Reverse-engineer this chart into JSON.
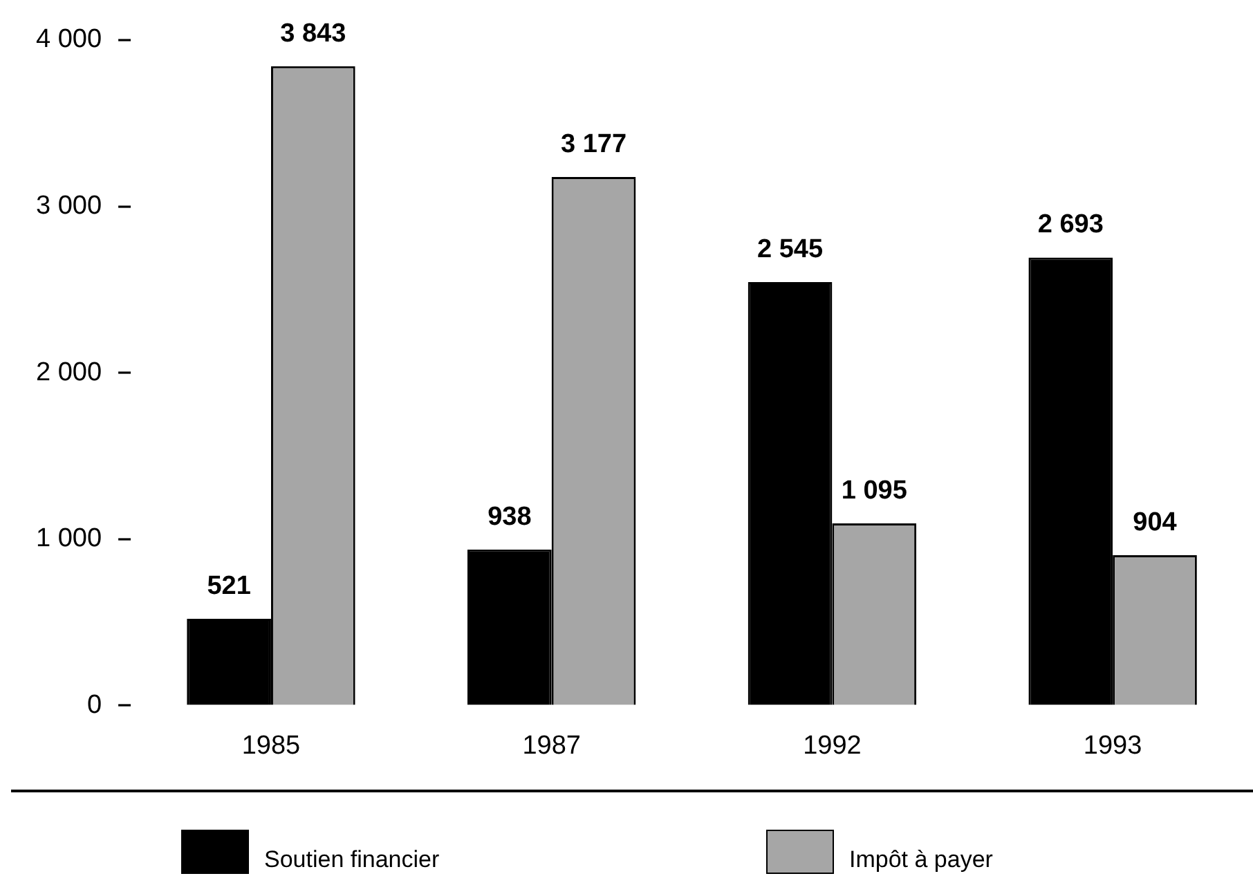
{
  "chart_data": {
    "type": "bar",
    "categories": [
      "1985",
      "1987",
      "1992",
      "1993"
    ],
    "series": [
      {
        "name": "Soutien financier",
        "color": "#000000",
        "values": [
          521,
          938,
          2545,
          2693
        ],
        "value_labels": [
          "521",
          "938",
          "2 545",
          "2 693"
        ]
      },
      {
        "name": "Impôt à payer",
        "color": "#a6a6a6",
        "values": [
          3843,
          3177,
          1095,
          904
        ],
        "value_labels": [
          "3 843",
          "3 177",
          "1 095",
          "904"
        ]
      }
    ],
    "ylim": [
      0,
      4000
    ],
    "yticks": [
      0,
      {
        "value": 1000,
        "label": "1 000"
      },
      {
        "value": 2000,
        "label": "2 000"
      },
      {
        "value": 3000,
        "label": "3 000"
      },
      {
        "value": 4000,
        "label": "4 000"
      }
    ],
    "legend": "bottom"
  }
}
